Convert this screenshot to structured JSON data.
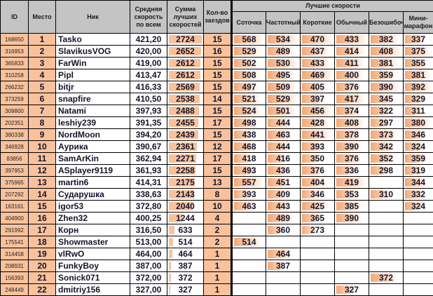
{
  "headers": {
    "id": "ID",
    "place": "Место",
    "nick": "Ник",
    "avg": "Средняя скорость по всем",
    "sum": "Сумма лучших скоростей",
    "count": "Кол-во заездов",
    "best": "Лучшие скорости",
    "modes": [
      "Соточка",
      "Частотный",
      "Короткие",
      "Обычный",
      "Безошибочный",
      "Мини-марафон"
    ]
  },
  "colors": {
    "header_bg": "#c4c4c4",
    "highlight": "#f9c29c",
    "bar": "#f4a877"
  },
  "rows": [
    {
      "id": "168650",
      "place": "1",
      "nick": "Tasko",
      "avg": "421,20",
      "sum": "2724",
      "count": "15",
      "speeds": [
        "568",
        "534",
        "470",
        "433",
        "382",
        "337"
      ]
    },
    {
      "id": "316953",
      "place": "2",
      "nick": "SlavikusVOG",
      "avg": "420,00",
      "sum": "2652",
      "count": "16",
      "speeds": [
        "529",
        "489",
        "437",
        "414",
        "408",
        "375"
      ]
    },
    {
      "id": "365833",
      "place": "3",
      "nick": "FarWin",
      "avg": "419,00",
      "sum": "2612",
      "count": "15",
      "speeds": [
        "502",
        "530",
        "433",
        "411",
        "381",
        "355"
      ]
    },
    {
      "id": "310258",
      "place": "4",
      "nick": "Pipl",
      "avg": "413,47",
      "sum": "2612",
      "count": "15",
      "speeds": [
        "508",
        "495",
        "469",
        "400",
        "359",
        "381"
      ]
    },
    {
      "id": "266232",
      "place": "5",
      "nick": "bitjr",
      "avg": "416,33",
      "sum": "2569",
      "count": "15",
      "speeds": [
        "497",
        "509",
        "405",
        "376",
        "390",
        "392"
      ]
    },
    {
      "id": "373259",
      "place": "6",
      "nick": "snapfire",
      "avg": "410,50",
      "sum": "2538",
      "count": "14",
      "speeds": [
        "521",
        "529",
        "397",
        "417",
        "345",
        "329"
      ]
    },
    {
      "id": "309800",
      "place": "7",
      "nick": "Natami",
      "avg": "397,93",
      "sum": "2488",
      "count": "15",
      "speeds": [
        "524",
        "501",
        "456",
        "374",
        "322",
        "311"
      ]
    },
    {
      "id": "202351",
      "place": "8",
      "nick": "leshiy239",
      "avg": "391,35",
      "sum": "2455",
      "count": "17",
      "speeds": [
        "498",
        "444",
        "428",
        "408",
        "297",
        "380"
      ]
    },
    {
      "id": "380338",
      "place": "9",
      "nick": "NordMoon",
      "avg": "394,20",
      "sum": "2439",
      "count": "15",
      "speeds": [
        "438",
        "463",
        "441",
        "378",
        "373",
        "346"
      ]
    },
    {
      "id": "346928",
      "place": "10",
      "nick": "Аурика",
      "avg": "390,67",
      "sum": "2361",
      "count": "12",
      "speeds": [
        "468",
        "444",
        "393",
        "390",
        "342",
        "324"
      ]
    },
    {
      "id": "83856",
      "place": "11",
      "nick": "SamArKin",
      "avg": "362,94",
      "sum": "2271",
      "count": "17",
      "speeds": [
        "418",
        "416",
        "350",
        "376",
        "352",
        "359"
      ]
    },
    {
      "id": "397953",
      "place": "12",
      "nick": "ASplayer9119",
      "avg": "361,93",
      "sum": "2258",
      "count": "15",
      "speeds": [
        "493",
        "436",
        "376",
        "336",
        "298",
        "319"
      ]
    },
    {
      "id": "375965",
      "place": "13",
      "nick": "martin6",
      "avg": "414,31",
      "sum": "2175",
      "count": "13",
      "speeds": [
        "557",
        "451",
        "404",
        "419",
        null,
        "344"
      ]
    },
    {
      "id": "207292",
      "place": "14",
      "nick": "Сударушка",
      "avg": "338,63",
      "sum": "2143",
      "count": "8",
      "speeds": [
        "393",
        "409",
        "346",
        "353",
        "310",
        "332"
      ]
    },
    {
      "id": "163161",
      "place": "15",
      "nick": "igor53",
      "avg": "372,80",
      "sum": "2040",
      "count": "10",
      "speeds": [
        "463",
        "443",
        "425",
        "385",
        null,
        "324"
      ]
    },
    {
      "id": "404900",
      "place": "16",
      "nick": "Zhen32",
      "avg": "400,25",
      "sum": "1244",
      "count": "4",
      "speeds": [
        null,
        "489",
        "365",
        "390",
        null,
        null
      ]
    },
    {
      "id": "291992",
      "place": "17",
      "nick": "Корн",
      "avg": "316,50",
      "sum": "633",
      "count": "2",
      "speeds": [
        null,
        "360",
        "273",
        null,
        null,
        null
      ]
    },
    {
      "id": "175541",
      "place": "18",
      "nick": "Showmaster",
      "avg": "513,00",
      "sum": "514",
      "count": "2",
      "speeds": [
        "514",
        null,
        null,
        null,
        null,
        null
      ]
    },
    {
      "id": "314458",
      "place": "19",
      "nick": "vlRwO",
      "avg": "464,00",
      "sum": "464",
      "count": "1",
      "speeds": [
        null,
        "464",
        null,
        null,
        null,
        null
      ]
    },
    {
      "id": "208931",
      "place": "20",
      "nick": "FunkyBoy",
      "avg": "387,00",
      "sum": "387",
      "count": "1",
      "speeds": [
        null,
        "387",
        null,
        null,
        null,
        null
      ]
    },
    {
      "id": "156393",
      "place": "21",
      "nick": "Sonick071",
      "avg": "372,00",
      "sum": "372",
      "count": "1",
      "speeds": [
        null,
        null,
        null,
        null,
        "372",
        null
      ]
    },
    {
      "id": "248449",
      "place": "22",
      "nick": "dmitriy156",
      "avg": "327,00",
      "sum": "327",
      "count": "1",
      "speeds": [
        null,
        null,
        null,
        "327",
        null,
        null
      ]
    }
  ]
}
